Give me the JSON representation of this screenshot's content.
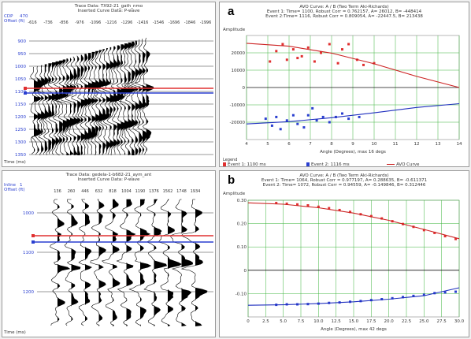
{
  "seismic_top": {
    "header_line1": "Trace Data: TX92-21_gath_nmo",
    "header_line2": "Inserted Curve Data: P-wave",
    "cdp_label": "CDP",
    "cdp_value": "470",
    "offset_label": "Offset (ft)",
    "offsets": [
      "-616",
      "-736",
      "-856",
      "-976",
      "-1096",
      "-1216",
      "-1296",
      "-1416",
      "-1546",
      "-1696",
      "-1846",
      "-1996"
    ],
    "times": [
      "900",
      "950",
      "1000",
      "1050",
      "1100",
      "1150",
      "1200",
      "1250",
      "1300",
      "1350"
    ],
    "time_label": "Time (ms)"
  },
  "seismic_bottom": {
    "header_line1": "Trace Data: gedela-1-b682-21_aym_ant",
    "header_line2": "Inserted Curve Data: P-wave",
    "inline_label": "Inline",
    "inline_value": "1",
    "offset_label": "Offset (ft)",
    "offsets": [
      "136",
      "260",
      "446",
      "632",
      "818",
      "1004",
      "1190",
      "1376",
      "1562",
      "1748",
      "1934"
    ],
    "times": [
      "1000",
      "1100",
      "1200"
    ],
    "time_label": "Time (ms)"
  },
  "chart_data": [
    {
      "type": "scatter",
      "panel_letter": "a",
      "title": "AVO Curve: A / B (Two Term Aki-Richards)",
      "subtitle1": "Event 1: Time= 1100, Robust Corr = 0.762157, A= 26012, B= -448414",
      "subtitle2": "Event 2:Time= 1116, Robust Corr = 0.809054, A= -22447.5, B= 213438",
      "ylabel": "Amplitude",
      "xlabel": "Angle (Degrees), max 16 degs",
      "xlim": [
        4,
        14
      ],
      "ylim": [
        -30000,
        30000
      ],
      "xticks": [
        4,
        5,
        6,
        7,
        8,
        9,
        10,
        11,
        12,
        13,
        14
      ],
      "yticks": [
        20000,
        10000,
        0,
        -10000,
        -20000
      ],
      "grid": true,
      "colors": {
        "event1": "#e03030",
        "event2": "#2a3fd0",
        "curve1": "#cc2222",
        "curve2": "#1f2fbf"
      },
      "series": [
        {
          "name": "Event 1: 1100 ms",
          "points": [
            [
              5.1,
              15000
            ],
            [
              5.4,
              21000
            ],
            [
              5.7,
              25000
            ],
            [
              5.9,
              16000
            ],
            [
              6.2,
              22000
            ],
            [
              6.4,
              17000
            ],
            [
              6.6,
              18000
            ],
            [
              6.9,
              23000
            ],
            [
              7.2,
              15000
            ],
            [
              7.5,
              20000
            ],
            [
              7.9,
              25000
            ],
            [
              8.3,
              14000
            ],
            [
              8.5,
              22000
            ],
            [
              8.8,
              25000
            ],
            [
              9.2,
              16000
            ],
            [
              9.5,
              13000
            ],
            [
              10.0,
              14000
            ]
          ]
        },
        {
          "name": "Event 2: 1116 ms",
          "points": [
            [
              4.9,
              -18000
            ],
            [
              5.2,
              -22000
            ],
            [
              5.4,
              -17000
            ],
            [
              5.6,
              -24000
            ],
            [
              5.9,
              -19000
            ],
            [
              6.2,
              -16000
            ],
            [
              6.4,
              -21000
            ],
            [
              6.7,
              -23000
            ],
            [
              6.9,
              -16000
            ],
            [
              7.1,
              -12000
            ],
            [
              7.3,
              -19000
            ],
            [
              7.6,
              -17000
            ],
            [
              7.9,
              -20000
            ],
            [
              8.2,
              -17000
            ],
            [
              8.5,
              -15000
            ],
            [
              8.8,
              -18000
            ],
            [
              9.3,
              -17000
            ]
          ]
        },
        {
          "name": "AVO Curve",
          "curves": [
            [
              [
                4,
                25500
              ],
              [
                6,
                23800
              ],
              [
                8,
                19800
              ],
              [
                10,
                13700
              ],
              [
                12,
                6400
              ],
              [
                14,
                0
              ]
            ],
            [
              [
                4,
                -21000
              ],
              [
                6,
                -19700
              ],
              [
                8,
                -17400
              ],
              [
                10,
                -14600
              ],
              [
                12,
                -11500
              ],
              [
                14,
                -9300
              ]
            ]
          ]
        }
      ],
      "legend_title": "Legend",
      "legend": [
        "Event 1: 1100 ms",
        "Event 2: 1116 ms",
        "AVO Curve"
      ]
    },
    {
      "type": "scatter",
      "panel_letter": "b",
      "title": "AVO Curve: A / B (Two Term Aki-Richards)",
      "subtitle1": "Event 1: Time= 1064, Robust Corr = 0.977197, A= 0.288635, B= -0.611371",
      "subtitle2": "Event 2: Time= 1072, Robust Corr = 0.94559, A= -0.149846, B= 0.312446",
      "ylabel": "Amplitude",
      "xlabel": "Angle (Degrees), max 42 degs",
      "xlim": [
        0,
        30
      ],
      "ylim": [
        -0.2,
        0.3
      ],
      "xticks": [
        0,
        2.5,
        5.0,
        7.5,
        10.0,
        12.5,
        15.0,
        17.5,
        20.0,
        22.5,
        25.0,
        27.5,
        30.0
      ],
      "xtick_labels": [
        "0",
        "2.5",
        "5.0",
        "7.5",
        "10.0",
        "12.5",
        "15.0",
        "17.5",
        "20.0",
        "22.5",
        "25.0",
        "27.5",
        "30.0"
      ],
      "yticks": [
        0.3,
        0.2,
        0.1,
        0,
        -0.1
      ],
      "ytick_labels": [
        "0.30",
        "0.20",
        "0.10",
        "0",
        "-0.10"
      ],
      "grid": true,
      "colors": {
        "event1": "#e03030",
        "event2": "#2a3fd0",
        "curve1": "#cc2222",
        "curve2": "#1f2fbf"
      },
      "series": [
        {
          "name": "Event 1",
          "points": [
            [
              4,
              0.288
            ],
            [
              5.5,
              0.285
            ],
            [
              7,
              0.282
            ],
            [
              8.5,
              0.278
            ],
            [
              10,
              0.272
            ],
            [
              11.5,
              0.266
            ],
            [
              13,
              0.258
            ],
            [
              14.5,
              0.25
            ],
            [
              16,
              0.24
            ],
            [
              17.5,
              0.232
            ],
            [
              19,
              0.222
            ],
            [
              20.5,
              0.21
            ],
            [
              22,
              0.198
            ],
            [
              23.5,
              0.186
            ],
            [
              25,
              0.172
            ],
            [
              26.5,
              0.16
            ],
            [
              28,
              0.146
            ],
            [
              29.5,
              0.134
            ]
          ]
        },
        {
          "name": "Event 2",
          "points": [
            [
              4,
              -0.148
            ],
            [
              5.5,
              -0.146
            ],
            [
              7,
              -0.146
            ],
            [
              8.5,
              -0.145
            ],
            [
              10,
              -0.143
            ],
            [
              11.5,
              -0.14
            ],
            [
              13,
              -0.138
            ],
            [
              14.5,
              -0.135
            ],
            [
              16,
              -0.132
            ],
            [
              17.5,
              -0.128
            ],
            [
              19,
              -0.124
            ],
            [
              20.5,
              -0.12
            ],
            [
              22,
              -0.115
            ],
            [
              23.5,
              -0.11
            ],
            [
              25,
              -0.105
            ],
            [
              26.5,
              -0.098
            ],
            [
              28,
              -0.095
            ],
            [
              29.5,
              -0.092
            ]
          ]
        },
        {
          "name": "AVO Curve",
          "curves": [
            [
              [
                0,
                0.289
              ],
              [
                5,
                0.283
              ],
              [
                10,
                0.268
              ],
              [
                15,
                0.245
              ],
              [
                20,
                0.214
              ],
              [
                25,
                0.175
              ],
              [
                30,
                0.135
              ]
            ],
            [
              [
                0,
                -0.15
              ],
              [
                5,
                -0.148
              ],
              [
                10,
                -0.143
              ],
              [
                15,
                -0.135
              ],
              [
                20,
                -0.124
              ],
              [
                25,
                -0.109
              ],
              [
                30,
                -0.075
              ]
            ]
          ]
        }
      ]
    }
  ]
}
